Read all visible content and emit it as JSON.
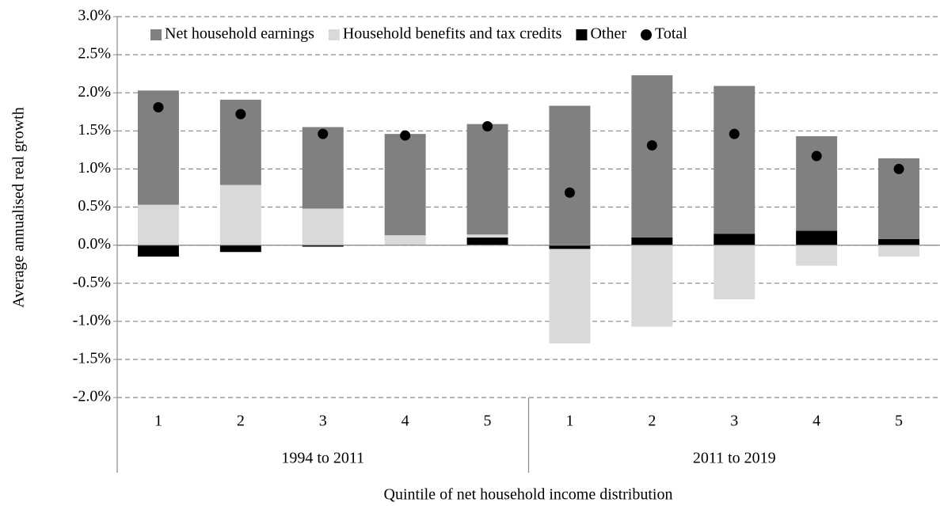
{
  "chart_data": {
    "type": "bar",
    "stacked": true,
    "y_label": "Average annualised real growth",
    "x_label": "Quintile of net household income distribution",
    "categories": [
      "1",
      "2",
      "3",
      "4",
      "5",
      "1",
      "2",
      "3",
      "4",
      "5"
    ],
    "groups": [
      {
        "name": "1994 to 2011",
        "size": 5
      },
      {
        "name": "2011 to 2019",
        "size": 5
      }
    ],
    "series": [
      {
        "name": "Net household earnings",
        "color": "#808080",
        "type": "bar",
        "values": [
          1.5,
          1.12,
          1.07,
          1.33,
          1.45,
          1.83,
          2.13,
          1.94,
          1.24,
          1.06
        ]
      },
      {
        "name": "Household benefits and tax credits",
        "color": "#d9d9d9",
        "type": "bar",
        "values": [
          0.53,
          0.79,
          0.48,
          0.13,
          0.04,
          -1.24,
          -1.07,
          -0.71,
          -0.27,
          -0.15
        ]
      },
      {
        "name": "Other",
        "color": "#000000",
        "type": "bar",
        "values": [
          -0.15,
          -0.09,
          -0.02,
          0.0,
          0.1,
          -0.05,
          0.1,
          0.15,
          0.19,
          0.08
        ]
      },
      {
        "name": "Total",
        "color": "#000000",
        "type": "point",
        "values": [
          1.81,
          1.72,
          1.46,
          1.44,
          1.56,
          0.69,
          1.31,
          1.46,
          1.17,
          1.0
        ]
      }
    ],
    "ylim": [
      -2,
      3
    ],
    "yticks": [
      {
        "value": -2,
        "label": "-2.0%"
      },
      {
        "value": -1.5,
        "label": "-1.5%"
      },
      {
        "value": -1,
        "label": "-1.0%"
      },
      {
        "value": -0.5,
        "label": "-0.5%"
      },
      {
        "value": 0,
        "label": "0.0%"
      },
      {
        "value": 0.5,
        "label": "0.5%"
      },
      {
        "value": 1,
        "label": "1.0%"
      },
      {
        "value": 1.5,
        "label": "1.5%"
      },
      {
        "value": 2,
        "label": "2.0%"
      },
      {
        "value": 2.5,
        "label": "2.5%"
      },
      {
        "value": 3,
        "label": "3.0%"
      }
    ],
    "grid": true,
    "legend": "top"
  }
}
